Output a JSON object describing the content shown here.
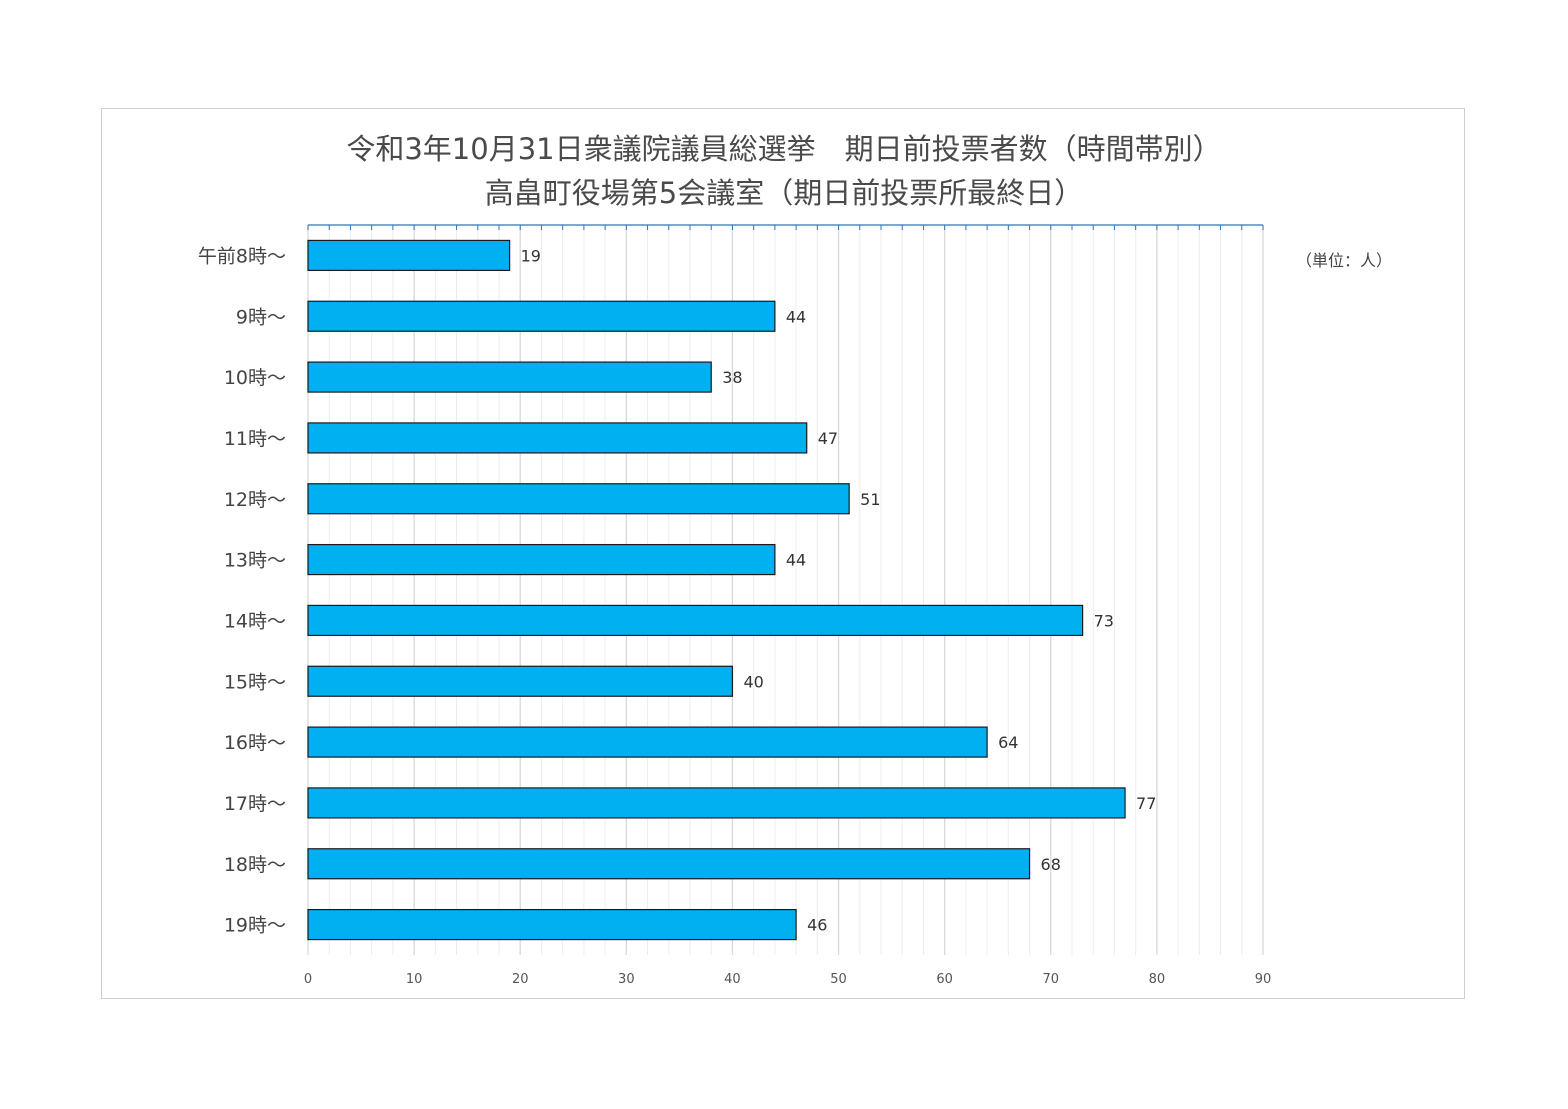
{
  "chart_data": {
    "type": "bar",
    "orientation": "horizontal",
    "title": "令和3年10月31日衆議院議員総選挙　期日前投票者数（時間帯別）",
    "subtitle": "高畠町役場第5会議室（期日前投票所最終日）",
    "unit_note": "（単位：人）",
    "categories": [
      "午前8時～",
      "9時～",
      "10時～",
      "11時～",
      "12時～",
      "13時～",
      "14時～",
      "15時～",
      "16時～",
      "17時～",
      "18時～",
      "19時～"
    ],
    "values": [
      19,
      44,
      38,
      47,
      51,
      44,
      73,
      40,
      64,
      77,
      68,
      46
    ],
    "xlim": [
      0,
      90
    ],
    "x_ticks": [
      0,
      10,
      20,
      30,
      40,
      50,
      60,
      70,
      80,
      90
    ],
    "grid": "vertical",
    "legend": "none"
  },
  "colors": {
    "bar_fill": "#00B0F0",
    "bar_stroke": "#1a1a1a",
    "gridline": "#d9d9d9",
    "axis": "#2e75b6",
    "title_text": "#4a4a4a",
    "label_text": "#444444"
  }
}
